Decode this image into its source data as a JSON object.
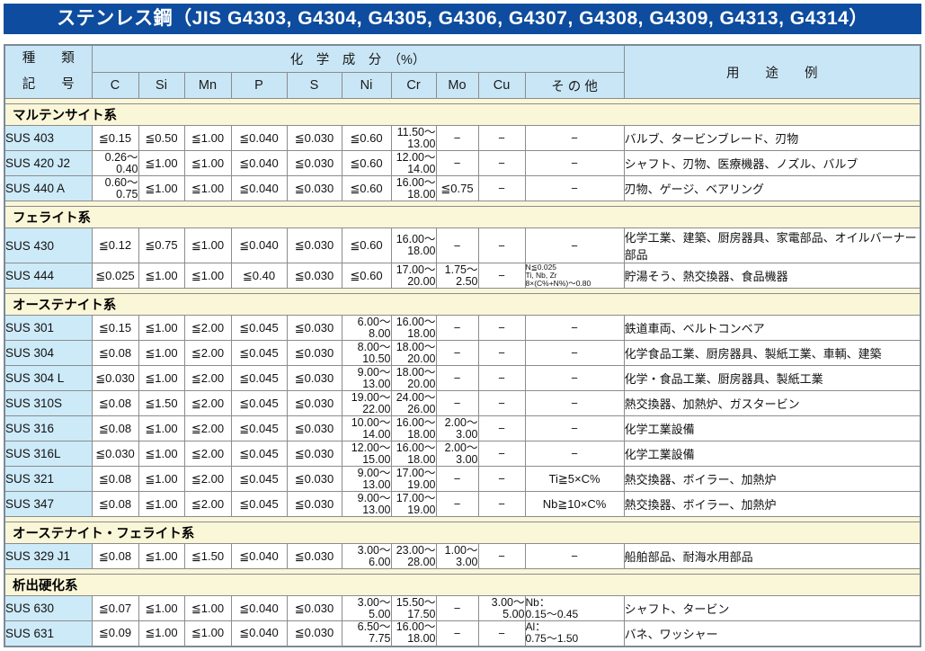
{
  "title": "ステンレス鋼（JIS G4303, G4304, G4305, G4306, G4307, G4308, G4309, G4313, G4314）",
  "colors": {
    "title_bar_bg": "#0d4c9e",
    "header_bg": "#c9e6f6",
    "code_cell_bg": "#cdeaf8",
    "section_bg": "#faf6d8",
    "border": "#8c8c8c"
  },
  "table": {
    "header": {
      "kind_line1": "種　　類",
      "kind_line2": "記　　号",
      "chem_group": "化　学　成　分　（%）",
      "elements": [
        "C",
        "Si",
        "Mn",
        "P",
        "S",
        "Ni",
        "Cr",
        "Mo",
        "Cu",
        "そ の 他"
      ],
      "usage": "用　　途　　例"
    },
    "sections": [
      {
        "name": "マルテンサイト系",
        "rows": [
          {
            "code": "SUS 403",
            "c": "≦0.15",
            "si": "≦0.50",
            "mn": "≦1.00",
            "p": "≦0.040",
            "s": "≦0.030",
            "ni": "≦0.60",
            "cr": "11.50～\n13.00",
            "mo": "−",
            "cu": "−",
            "other": "−",
            "usage": "バルブ、タービンブレード、刃物"
          },
          {
            "code": "SUS 420 J2",
            "c": "0.26～\n0.40",
            "si": "≦1.00",
            "mn": "≦1.00",
            "p": "≦0.040",
            "s": "≦0.030",
            "ni": "≦0.60",
            "cr": "12.00～\n14.00",
            "mo": "−",
            "cu": "−",
            "other": "−",
            "usage": "シャフト、刃物、医療機器、ノズル、バルブ"
          },
          {
            "code": "SUS 440 A",
            "c": "0.60～\n0.75",
            "si": "≦1.00",
            "mn": "≦1.00",
            "p": "≦0.040",
            "s": "≦0.030",
            "ni": "≦0.60",
            "cr": "16.00～\n18.00",
            "mo": "≦0.75",
            "cu": "−",
            "other": "−",
            "usage": "刃物、ゲージ、ベアリング"
          }
        ]
      },
      {
        "name": "フェライト系",
        "rows": [
          {
            "code": "SUS 430",
            "c": "≦0.12",
            "si": "≦0.75",
            "mn": "≦1.00",
            "p": "≦0.040",
            "s": "≦0.030",
            "ni": "≦0.60",
            "cr": "16.00～\n18.00",
            "mo": "−",
            "cu": "−",
            "other": "−",
            "usage": "化学工業、建築、厨房器具、家電部品、オイルバーナー部品"
          },
          {
            "code": "SUS 444",
            "c": "≦0.025",
            "si": "≦1.00",
            "mn": "≦1.00",
            "p": "≦0.40",
            "s": "≦0.030",
            "ni": "≦0.60",
            "cr": "17.00～\n20.00",
            "mo": "1.75～\n2.50",
            "cu": "−",
            "other": "N≦0.025\nTi, Nb, Zr\n8×(C%+N%)～0.80",
            "usage": "貯湯そう、熱交換器、食品機器"
          }
        ]
      },
      {
        "name": "オーステナイト系",
        "rows": [
          {
            "code": "SUS 301",
            "c": "≦0.15",
            "si": "≦1.00",
            "mn": "≦2.00",
            "p": "≦0.045",
            "s": "≦0.030",
            "ni": "6.00～\n8.00",
            "cr": "16.00～\n18.00",
            "mo": "−",
            "cu": "−",
            "other": "−",
            "usage": "鉄道車両、ベルトコンベア"
          },
          {
            "code": "SUS 304",
            "c": "≦0.08",
            "si": "≦1.00",
            "mn": "≦2.00",
            "p": "≦0.045",
            "s": "≦0.030",
            "ni": "8.00～\n10.50",
            "cr": "18.00～\n20.00",
            "mo": "−",
            "cu": "−",
            "other": "−",
            "usage": "化学食品工業、厨房器具、製紙工業、車輌、建築"
          },
          {
            "code": "SUS 304 L",
            "c": "≦0.030",
            "si": "≦1.00",
            "mn": "≦2.00",
            "p": "≦0.045",
            "s": "≦0.030",
            "ni": "9.00～\n13.00",
            "cr": "18.00～\n20.00",
            "mo": "−",
            "cu": "−",
            "other": "−",
            "usage": "化学・食品工業、厨房器具、製紙工業"
          },
          {
            "code": "SUS 310S",
            "c": "≦0.08",
            "si": "≦1.50",
            "mn": "≦2.00",
            "p": "≦0.045",
            "s": "≦0.030",
            "ni": "19.00～\n22.00",
            "cr": "24.00～\n26.00",
            "mo": "−",
            "cu": "−",
            "other": "−",
            "usage": "熱交換器、加熱炉、ガスタービン"
          },
          {
            "code": "SUS 316",
            "c": "≦0.08",
            "si": "≦1.00",
            "mn": "≦2.00",
            "p": "≦0.045",
            "s": "≦0.030",
            "ni": "10.00～\n14.00",
            "cr": "16.00～\n18.00",
            "mo": "2.00～\n3.00",
            "cu": "−",
            "other": "−",
            "usage": "化学工業設備"
          },
          {
            "code": "SUS 316L",
            "c": "≦0.030",
            "si": "≦1.00",
            "mn": "≦2.00",
            "p": "≦0.045",
            "s": "≦0.030",
            "ni": "12.00～\n15.00",
            "cr": "16.00～\n18.00",
            "mo": "2.00～\n3.00",
            "cu": "−",
            "other": "−",
            "usage": "化学工業設備"
          },
          {
            "code": "SUS 321",
            "c": "≦0.08",
            "si": "≦1.00",
            "mn": "≦2.00",
            "p": "≦0.045",
            "s": "≦0.030",
            "ni": "9.00～\n13.00",
            "cr": "17.00～\n19.00",
            "mo": "−",
            "cu": "−",
            "other": "Ti≧5×C%",
            "usage": "熱交換器、ボイラー、加熱炉"
          },
          {
            "code": "SUS 347",
            "c": "≦0.08",
            "si": "≦1.00",
            "mn": "≦2.00",
            "p": "≦0.045",
            "s": "≦0.030",
            "ni": "9.00～\n13.00",
            "cr": "17.00～\n19.00",
            "mo": "−",
            "cu": "−",
            "other": "Nb≧10×C%",
            "usage": "熱交換器、ボイラー、加熱炉"
          }
        ]
      },
      {
        "name": "オーステナイト・フェライト系",
        "rows": [
          {
            "code": "SUS 329 J1",
            "c": "≦0.08",
            "si": "≦1.00",
            "mn": "≦1.50",
            "p": "≦0.040",
            "s": "≦0.030",
            "ni": "3.00～\n6.00",
            "cr": "23.00～\n28.00",
            "mo": "1.00～\n3.00",
            "cu": "−",
            "other": "−",
            "usage": "船舶部品、耐海水用部品"
          }
        ]
      },
      {
        "name": "析出硬化系",
        "rows": [
          {
            "code": "SUS 630",
            "c": "≦0.07",
            "si": "≦1.00",
            "mn": "≦1.00",
            "p": "≦0.040",
            "s": "≦0.030",
            "ni": "3.00～\n5.00",
            "cr": "15.50～\n17.50",
            "mo": "−",
            "cu": "3.00～\n5.00",
            "other": "Nb：\n0.15～0.45",
            "usage": "シャフト、タービン"
          },
          {
            "code": "SUS 631",
            "c": "≦0.09",
            "si": "≦1.00",
            "mn": "≦1.00",
            "p": "≦0.040",
            "s": "≦0.030",
            "ni": "6.50～\n7.75",
            "cr": "16.00～\n18.00",
            "mo": "−",
            "cu": "−",
            "other": "Al：\n0.75～1.50",
            "usage": "バネ、ワッシャー"
          }
        ]
      }
    ]
  }
}
